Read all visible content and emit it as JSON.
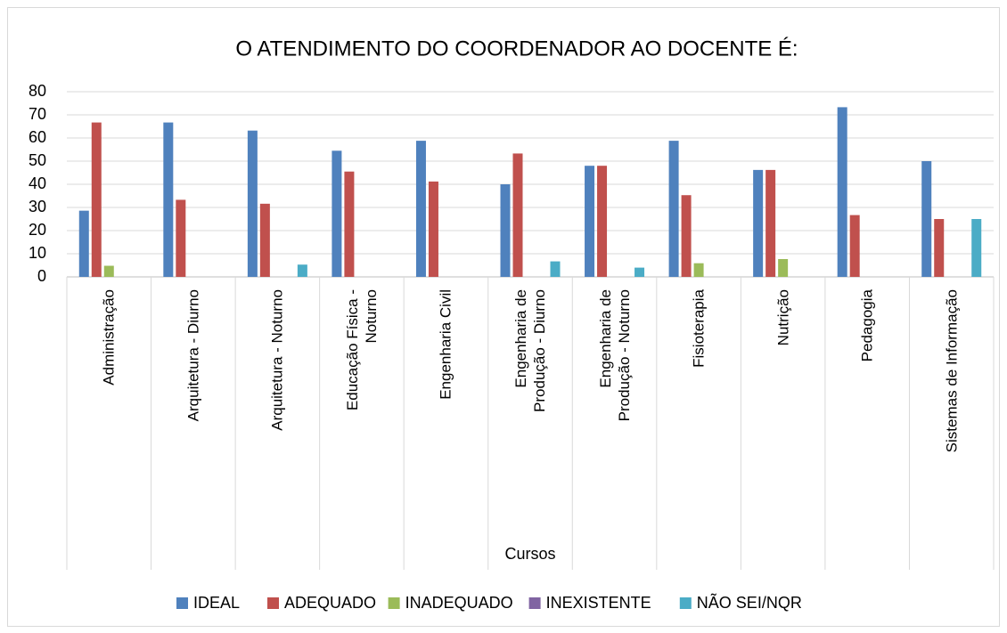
{
  "chart_data": {
    "type": "bar",
    "title": "O ATENDIMENTO DO COORDENADOR AO DOCENTE É:",
    "x_label": "Cursos",
    "categories": [
      "Administração",
      "Arquitetura - Diurno",
      "Arquitetura - Noturno",
      "Educação Física -\nNoturno",
      "Engenharia Civil",
      "Engenharia de\nProdução - Diurno",
      "Engenharia de\nProdução - Noturno",
      "Fisioterapia",
      "Nutrição",
      "Pedagogia",
      "Sistemas de Informação"
    ],
    "series": [
      {
        "name": "IDEAL",
        "color": "#4f81bd",
        "values": [
          28.6,
          66.7,
          63.2,
          54.5,
          58.8,
          40,
          48,
          58.8,
          46.2,
          73.3,
          50
        ]
      },
      {
        "name": "ADEQUADO",
        "color": "#c0504d",
        "values": [
          66.7,
          33.3,
          31.6,
          45.5,
          41.2,
          53.3,
          48,
          35.3,
          46.2,
          26.7,
          25
        ]
      },
      {
        "name": "INADEQUADO",
        "color": "#9bbb59",
        "values": [
          4.8,
          0,
          0,
          0,
          0,
          0,
          0,
          5.9,
          7.7,
          0,
          0
        ]
      },
      {
        "name": "INEXISTENTE",
        "color": "#8064a2",
        "values": [
          0,
          0,
          0,
          0,
          0,
          0,
          0,
          0,
          0,
          0,
          0
        ]
      },
      {
        "name": "NÃO SEI/NQR",
        "color": "#4bacc6",
        "values": [
          0,
          0,
          5.3,
          0,
          0,
          6.7,
          4,
          0,
          0,
          0,
          25
        ]
      }
    ],
    "ylim": [
      0,
      80
    ],
    "yticks": [
      0,
      10,
      20,
      30,
      40,
      50,
      60,
      70,
      80
    ],
    "grid": true,
    "legend": "bottom"
  }
}
